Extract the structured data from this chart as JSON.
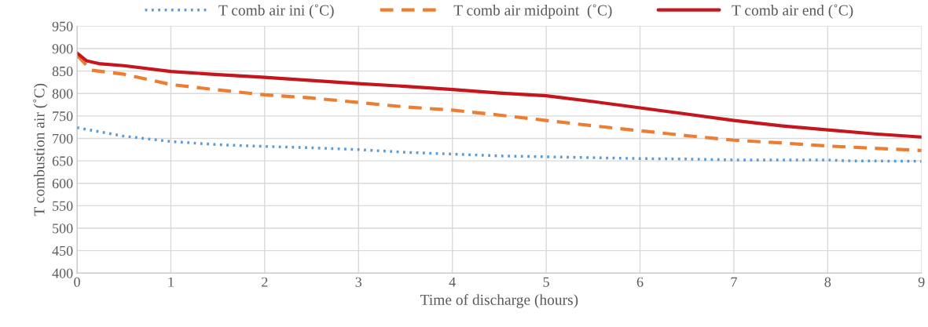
{
  "chart_data": {
    "type": "line",
    "xlabel": "Time of discharge (hours)",
    "ylabel": "T combustion air (˚C)",
    "xlim": [
      0,
      9
    ],
    "xticks": [
      0,
      1,
      2,
      3,
      4,
      5,
      6,
      7,
      8,
      9
    ],
    "ylim": [
      400,
      950
    ],
    "yticks": [
      400,
      450,
      500,
      550,
      600,
      650,
      700,
      750,
      800,
      850,
      900,
      950
    ],
    "grid": true,
    "legend": "top",
    "marker": "none",
    "series": [
      {
        "name": "T comb air ini (˚C)",
        "color": "#5b9bd5",
        "line_style": "dotted",
        "x": [
          0,
          0.5,
          1,
          1.5,
          2,
          2.5,
          3,
          3.5,
          4,
          4.5,
          5,
          5.5,
          6,
          6.5,
          7,
          7.5,
          8,
          8.2,
          9
        ],
        "values": [
          724,
          705,
          693,
          686,
          682,
          679,
          675,
          669,
          665,
          661,
          659,
          657,
          655,
          654,
          652,
          652,
          652,
          650,
          649
        ]
      },
      {
        "name": "T comb air midpoint  (˚C)",
        "color": "#ed7d31",
        "line_style": "dashed",
        "x": [
          0,
          0.15,
          0.5,
          1,
          1.5,
          2,
          2.5,
          3,
          3.5,
          4,
          4.5,
          5,
          5.5,
          6,
          6.5,
          7,
          7.5,
          8,
          8.5,
          9
        ],
        "values": [
          885,
          852,
          843,
          820,
          808,
          797,
          790,
          780,
          770,
          763,
          752,
          740,
          728,
          717,
          706,
          696,
          690,
          683,
          678,
          673
        ]
      },
      {
        "name": "T comb air end (˚C)",
        "color": "#c5161d",
        "line_style": "solid",
        "x": [
          0,
          0.1,
          0.25,
          0.5,
          1,
          1.5,
          2,
          2.5,
          3,
          3.5,
          4,
          4.5,
          5,
          5.5,
          6,
          6.5,
          7,
          7.5,
          8,
          8.5,
          9
        ],
        "values": [
          890,
          873,
          866,
          862,
          849,
          842,
          836,
          829,
          822,
          816,
          809,
          801,
          795,
          782,
          768,
          754,
          740,
          728,
          719,
          710,
          703
        ]
      }
    ]
  }
}
